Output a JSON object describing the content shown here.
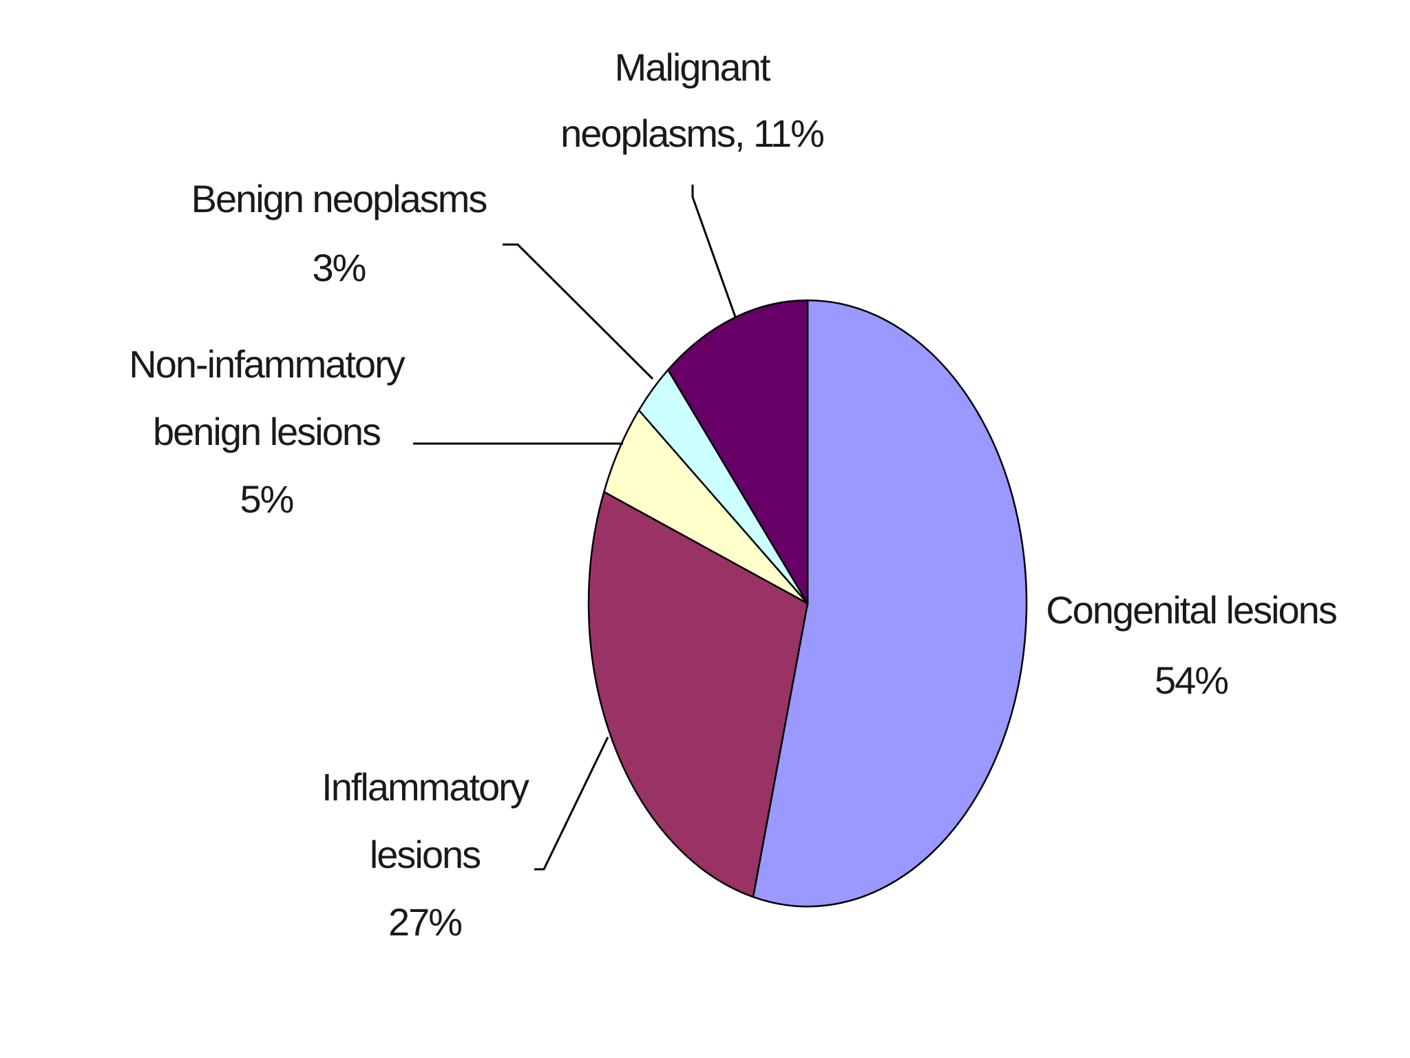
{
  "chart_data": {
    "type": "pie",
    "title": "",
    "start_angle_deg": 0,
    "direction": "clockwise",
    "slices": [
      {
        "key": "congenital",
        "label_lines": [
          "Congenital lesions",
          "54%"
        ],
        "value": 54,
        "color": "#9999ff"
      },
      {
        "key": "inflammatory",
        "label_lines": [
          "Inflammatory",
          "lesions",
          "27%"
        ],
        "value": 27,
        "color": "#993366"
      },
      {
        "key": "noninflammatory",
        "label_lines": [
          "Non-infammatory",
          "benign lesions",
          "5%"
        ],
        "value": 5,
        "color": "#ffffcc"
      },
      {
        "key": "benign",
        "label_lines": [
          "Benign neoplasms",
          "3%"
        ],
        "value": 3,
        "color": "#ccffff"
      },
      {
        "key": "malignant",
        "label_lines": [
          "Malignant",
          "neoplasms, 11%"
        ],
        "value": 11,
        "color": "#660066"
      }
    ]
  }
}
